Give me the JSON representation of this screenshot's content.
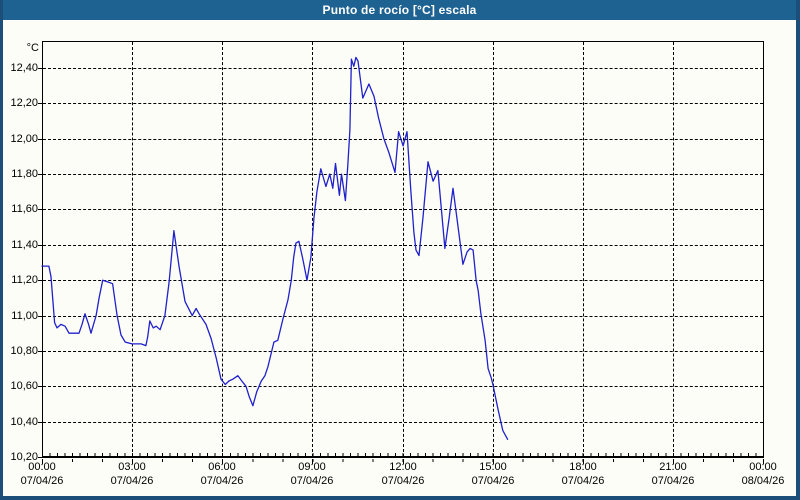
{
  "window": {
    "title": "Punto de rocío [°C] escala",
    "title_bar_color": "#1E6292",
    "border_color": "#1B4E78",
    "background_color": "#FCFDF7"
  },
  "chart_data": {
    "type": "line",
    "title": "Punto de rocío [°C] escala",
    "ylabel": "°C",
    "xlabel": "",
    "ylim": [
      10.2,
      12.553
    ],
    "xlim_hours": [
      0,
      24
    ],
    "grid": "dashed black on near-white, every 0.2 °C and every 3 h",
    "legend_position": "none",
    "line_color": "#2020CC",
    "y_ticks": [
      {
        "value": 12.4,
        "label": "12,40"
      },
      {
        "value": 12.2,
        "label": "12,20"
      },
      {
        "value": 12.0,
        "label": "12,00"
      },
      {
        "value": 11.8,
        "label": "11,80"
      },
      {
        "value": 11.6,
        "label": "11,60"
      },
      {
        "value": 11.4,
        "label": "11,40"
      },
      {
        "value": 11.2,
        "label": "11,20"
      },
      {
        "value": 11.0,
        "label": "11,00"
      },
      {
        "value": 10.8,
        "label": "10,80"
      },
      {
        "value": 10.6,
        "label": "10,60"
      },
      {
        "value": 10.4,
        "label": "10,40"
      },
      {
        "value": 10.2,
        "label": "10,20"
      }
    ],
    "x_ticks": [
      {
        "hour": 0,
        "time": "00:00",
        "date": "07/04/26"
      },
      {
        "hour": 3,
        "time": "03:00",
        "date": "07/04/26"
      },
      {
        "hour": 6,
        "time": "06:00",
        "date": "07/04/26"
      },
      {
        "hour": 9,
        "time": "09:00",
        "date": "07/04/26"
      },
      {
        "hour": 12,
        "time": "12:00",
        "date": "07/04/26"
      },
      {
        "hour": 15,
        "time": "15:00",
        "date": "07/04/26"
      },
      {
        "hour": 18,
        "time": "18:00",
        "date": "07/04/26"
      },
      {
        "hour": 21,
        "time": "21:00",
        "date": "07/04/26"
      },
      {
        "hour": 24,
        "time": "00:00",
        "date": "08/04/26"
      }
    ],
    "series": [
      {
        "name": "Punto de rocío",
        "unit": "°C",
        "color": "#2020CC",
        "points_hour_value": [
          [
            0.0,
            11.28
          ],
          [
            0.23,
            11.28
          ],
          [
            0.3,
            11.22
          ],
          [
            0.42,
            10.96
          ],
          [
            0.5,
            10.93
          ],
          [
            0.63,
            10.95
          ],
          [
            0.77,
            10.94
          ],
          [
            0.9,
            10.9
          ],
          [
            1.1,
            10.9
          ],
          [
            1.23,
            10.9
          ],
          [
            1.33,
            10.95
          ],
          [
            1.43,
            11.01
          ],
          [
            1.55,
            10.95
          ],
          [
            1.63,
            10.9
          ],
          [
            1.8,
            11.0
          ],
          [
            1.9,
            11.1
          ],
          [
            2.02,
            11.2
          ],
          [
            2.2,
            11.19
          ],
          [
            2.35,
            11.18
          ],
          [
            2.5,
            11.0
          ],
          [
            2.63,
            10.89
          ],
          [
            2.77,
            10.85
          ],
          [
            3.0,
            10.84
          ],
          [
            3.3,
            10.84
          ],
          [
            3.46,
            10.83
          ],
          [
            3.52,
            10.88
          ],
          [
            3.59,
            10.97
          ],
          [
            3.7,
            10.93
          ],
          [
            3.8,
            10.94
          ],
          [
            3.93,
            10.92
          ],
          [
            4.09,
            11.0
          ],
          [
            4.23,
            11.19
          ],
          [
            4.39,
            11.48
          ],
          [
            4.56,
            11.28
          ],
          [
            4.76,
            11.08
          ],
          [
            5.0,
            11.0
          ],
          [
            5.13,
            11.04
          ],
          [
            5.23,
            11.01
          ],
          [
            5.46,
            10.95
          ],
          [
            5.63,
            10.87
          ],
          [
            5.8,
            10.76
          ],
          [
            5.96,
            10.64
          ],
          [
            6.1,
            10.61
          ],
          [
            6.22,
            10.63
          ],
          [
            6.35,
            10.64
          ],
          [
            6.52,
            10.66
          ],
          [
            6.65,
            10.63
          ],
          [
            6.79,
            10.6
          ],
          [
            6.9,
            10.54
          ],
          [
            7.02,
            10.49
          ],
          [
            7.15,
            10.57
          ],
          [
            7.3,
            10.63
          ],
          [
            7.42,
            10.66
          ],
          [
            7.52,
            10.71
          ],
          [
            7.62,
            10.78
          ],
          [
            7.72,
            10.85
          ],
          [
            7.85,
            10.86
          ],
          [
            8.02,
            10.98
          ],
          [
            8.19,
            11.09
          ],
          [
            8.3,
            11.2
          ],
          [
            8.38,
            11.33
          ],
          [
            8.45,
            11.41
          ],
          [
            8.55,
            11.42
          ],
          [
            8.68,
            11.32
          ],
          [
            8.82,
            11.2
          ],
          [
            8.95,
            11.33
          ],
          [
            9.05,
            11.55
          ],
          [
            9.15,
            11.7
          ],
          [
            9.28,
            11.83
          ],
          [
            9.45,
            11.73
          ],
          [
            9.58,
            11.8
          ],
          [
            9.68,
            11.72
          ],
          [
            9.77,
            11.86
          ],
          [
            9.9,
            11.68
          ],
          [
            9.97,
            11.8
          ],
          [
            10.1,
            11.65
          ],
          [
            10.18,
            11.85
          ],
          [
            10.25,
            12.05
          ],
          [
            10.3,
            12.45
          ],
          [
            10.38,
            12.41
          ],
          [
            10.45,
            12.46
          ],
          [
            10.52,
            12.44
          ],
          [
            10.68,
            12.23
          ],
          [
            10.88,
            12.31
          ],
          [
            11.05,
            12.24
          ],
          [
            11.2,
            12.12
          ],
          [
            11.38,
            12.0
          ],
          [
            11.55,
            11.92
          ],
          [
            11.75,
            11.81
          ],
          [
            11.87,
            12.04
          ],
          [
            12.02,
            11.96
          ],
          [
            12.15,
            12.04
          ],
          [
            12.28,
            11.7
          ],
          [
            12.38,
            11.47
          ],
          [
            12.45,
            11.37
          ],
          [
            12.55,
            11.34
          ],
          [
            12.68,
            11.55
          ],
          [
            12.85,
            11.87
          ],
          [
            13.02,
            11.76
          ],
          [
            13.18,
            11.82
          ],
          [
            13.41,
            11.38
          ],
          [
            13.55,
            11.55
          ],
          [
            13.68,
            11.72
          ],
          [
            13.85,
            11.5
          ],
          [
            14.01,
            11.29
          ],
          [
            14.15,
            11.36
          ],
          [
            14.25,
            11.38
          ],
          [
            14.35,
            11.37
          ],
          [
            14.45,
            11.2
          ],
          [
            14.52,
            11.14
          ],
          [
            14.61,
            11.01
          ],
          [
            14.75,
            10.86
          ],
          [
            14.85,
            10.7
          ],
          [
            14.95,
            10.65
          ],
          [
            15.01,
            10.61
          ],
          [
            15.18,
            10.47
          ],
          [
            15.34,
            10.35
          ],
          [
            15.5,
            10.3
          ]
        ]
      }
    ]
  }
}
